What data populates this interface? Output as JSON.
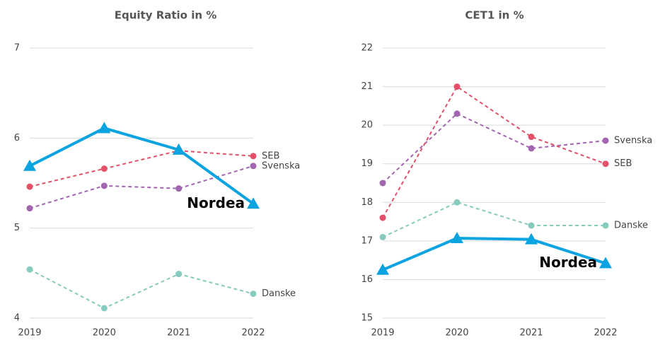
{
  "chart_data": [
    {
      "type": "line",
      "title": "Equity Ratio in %",
      "categories": [
        "2019",
        "2020",
        "2021",
        "2022"
      ],
      "ylim": [
        4,
        7
      ],
      "yticks": [
        4,
        5,
        6,
        7
      ],
      "grid": true,
      "series": [
        {
          "name": "Danske",
          "color": "#86cbbd",
          "values": [
            4.54,
            4.11,
            4.49,
            4.27
          ]
        },
        {
          "name": "Svenska",
          "color": "#a265b0",
          "values": [
            5.22,
            5.47,
            5.44,
            5.69
          ]
        },
        {
          "name": "SEB",
          "color": "#e2506a",
          "values": [
            5.46,
            5.66,
            5.86,
            5.8
          ]
        },
        {
          "name": "Nordea",
          "color": "#0ba3e0",
          "values": [
            5.69,
            6.11,
            5.87,
            5.27
          ]
        }
      ]
    },
    {
      "type": "line",
      "title": "CET1 in %",
      "categories": [
        "2019",
        "2020",
        "2021",
        "2022"
      ],
      "ylim": [
        15,
        22
      ],
      "yticks": [
        15,
        16,
        17,
        18,
        19,
        20,
        21,
        22
      ],
      "grid": true,
      "series": [
        {
          "name": "Danske",
          "color": "#86cbbd",
          "values": [
            17.1,
            18.0,
            17.4,
            17.4
          ]
        },
        {
          "name": "Svenska",
          "color": "#a265b0",
          "values": [
            18.5,
            20.3,
            19.4,
            19.6
          ]
        },
        {
          "name": "SEB",
          "color": "#e2506a",
          "values": [
            17.6,
            21.0,
            19.7,
            19.0
          ]
        },
        {
          "name": "Nordea",
          "color": "#0ba3e0",
          "values": [
            16.25,
            17.07,
            17.04,
            16.42
          ]
        }
      ]
    }
  ]
}
